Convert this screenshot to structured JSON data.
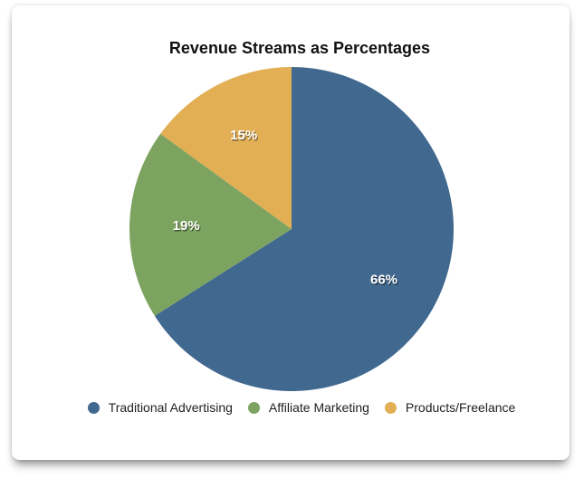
{
  "chart_data": {
    "type": "pie",
    "title": "Revenue Streams as Percentages",
    "series": [
      {
        "label": "Traditional Advertising",
        "value": 66,
        "display": "66%",
        "color": "#41688F"
      },
      {
        "label": "Affiliate Marketing",
        "value": 19,
        "display": "19%",
        "color": "#7CA35F"
      },
      {
        "label": "Products/Freelance",
        "value": 15,
        "display": "15%",
        "color": "#E2AF55"
      }
    ],
    "start_from": "top",
    "direction": "clockwise",
    "legend_position": "bottom",
    "slice_label_color": "#FFFFFF",
    "background": "#FFFFFF"
  }
}
